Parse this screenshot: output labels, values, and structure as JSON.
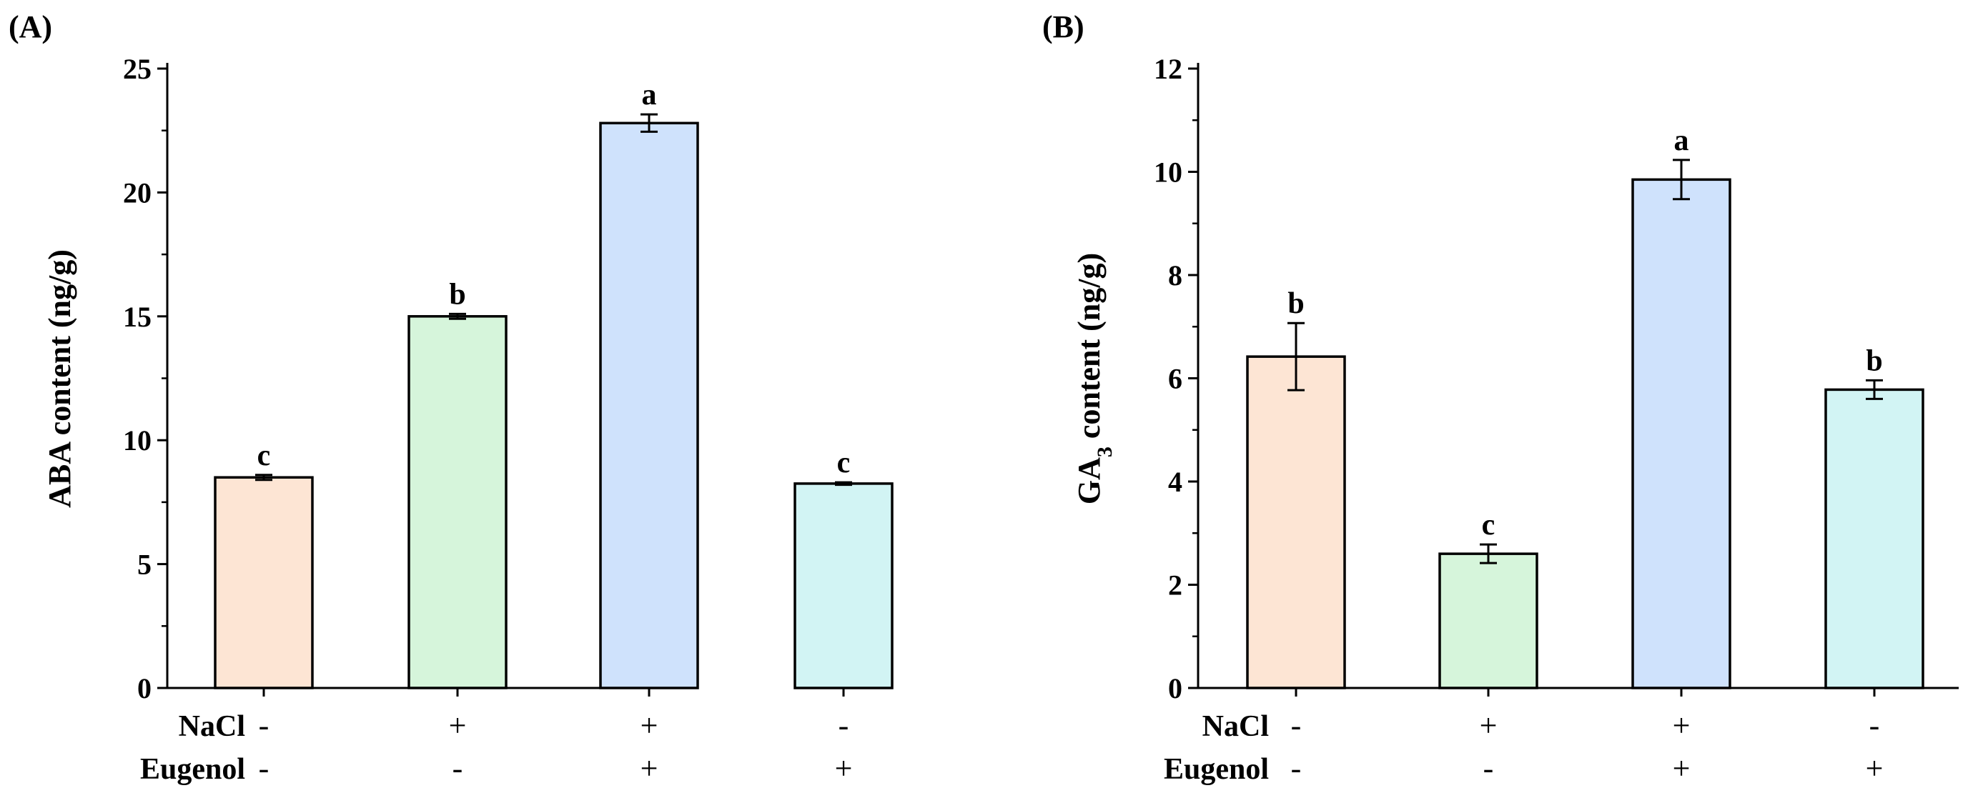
{
  "chart_data": [
    {
      "type": "bar",
      "panel_label": "(A)",
      "ylabel": "ABA content (ng/g)",
      "ylim": [
        0,
        25
      ],
      "yticks": [
        0,
        5,
        10,
        15,
        20,
        25
      ],
      "ytick_labels": [
        "0",
        "5",
        "10",
        "15",
        "20",
        "25"
      ],
      "categories": [
        "NaCl - / Eugenol -",
        "NaCl + / Eugenol -",
        "NaCl + / Eugenol +",
        "NaCl - / Eugenol +"
      ],
      "values": [
        8.5,
        15.0,
        22.8,
        8.25
      ],
      "errors": [
        0.1,
        0.1,
        0.35,
        0.05
      ],
      "significance": [
        "c",
        "b",
        "a",
        "c"
      ],
      "colors": [
        "#FDE5D4",
        "#D6F5DB",
        "#CFE2FC",
        "#D2F4F4"
      ],
      "treatments": [
        {
          "name": "NaCl",
          "signs": [
            "-",
            "+",
            "+",
            "-"
          ]
        },
        {
          "name": "Eugenol",
          "signs": [
            "-",
            "-",
            "+",
            "+"
          ]
        }
      ]
    },
    {
      "type": "bar",
      "panel_label": "(B)",
      "ylabel": "GA3 content (ng/g)",
      "ylabel_main": "GA",
      "ylabel_sub": "3",
      "ylabel_rest": " content (ng/g)",
      "ylim": [
        0,
        12
      ],
      "yticks": [
        0,
        2,
        4,
        6,
        8,
        10,
        12
      ],
      "ytick_labels": [
        "0",
        "2",
        "4",
        "6",
        "8",
        "10",
        "12"
      ],
      "categories": [
        "NaCl - / Eugenol -",
        "NaCl + / Eugenol -",
        "NaCl + / Eugenol +",
        "NaCl - / Eugenol +"
      ],
      "values": [
        6.42,
        2.6,
        9.85,
        5.78
      ],
      "errors": [
        0.65,
        0.18,
        0.38,
        0.18
      ],
      "significance": [
        "b",
        "c",
        "a",
        "b"
      ],
      "colors": [
        "#FDE5D4",
        "#D6F5DB",
        "#CFE2FC",
        "#D2F4F4"
      ],
      "treatments": [
        {
          "name": "NaCl",
          "signs": [
            "-",
            "+",
            "+",
            "-"
          ]
        },
        {
          "name": "Eugenol",
          "signs": [
            "-",
            "-",
            "+",
            "+"
          ]
        }
      ]
    }
  ]
}
